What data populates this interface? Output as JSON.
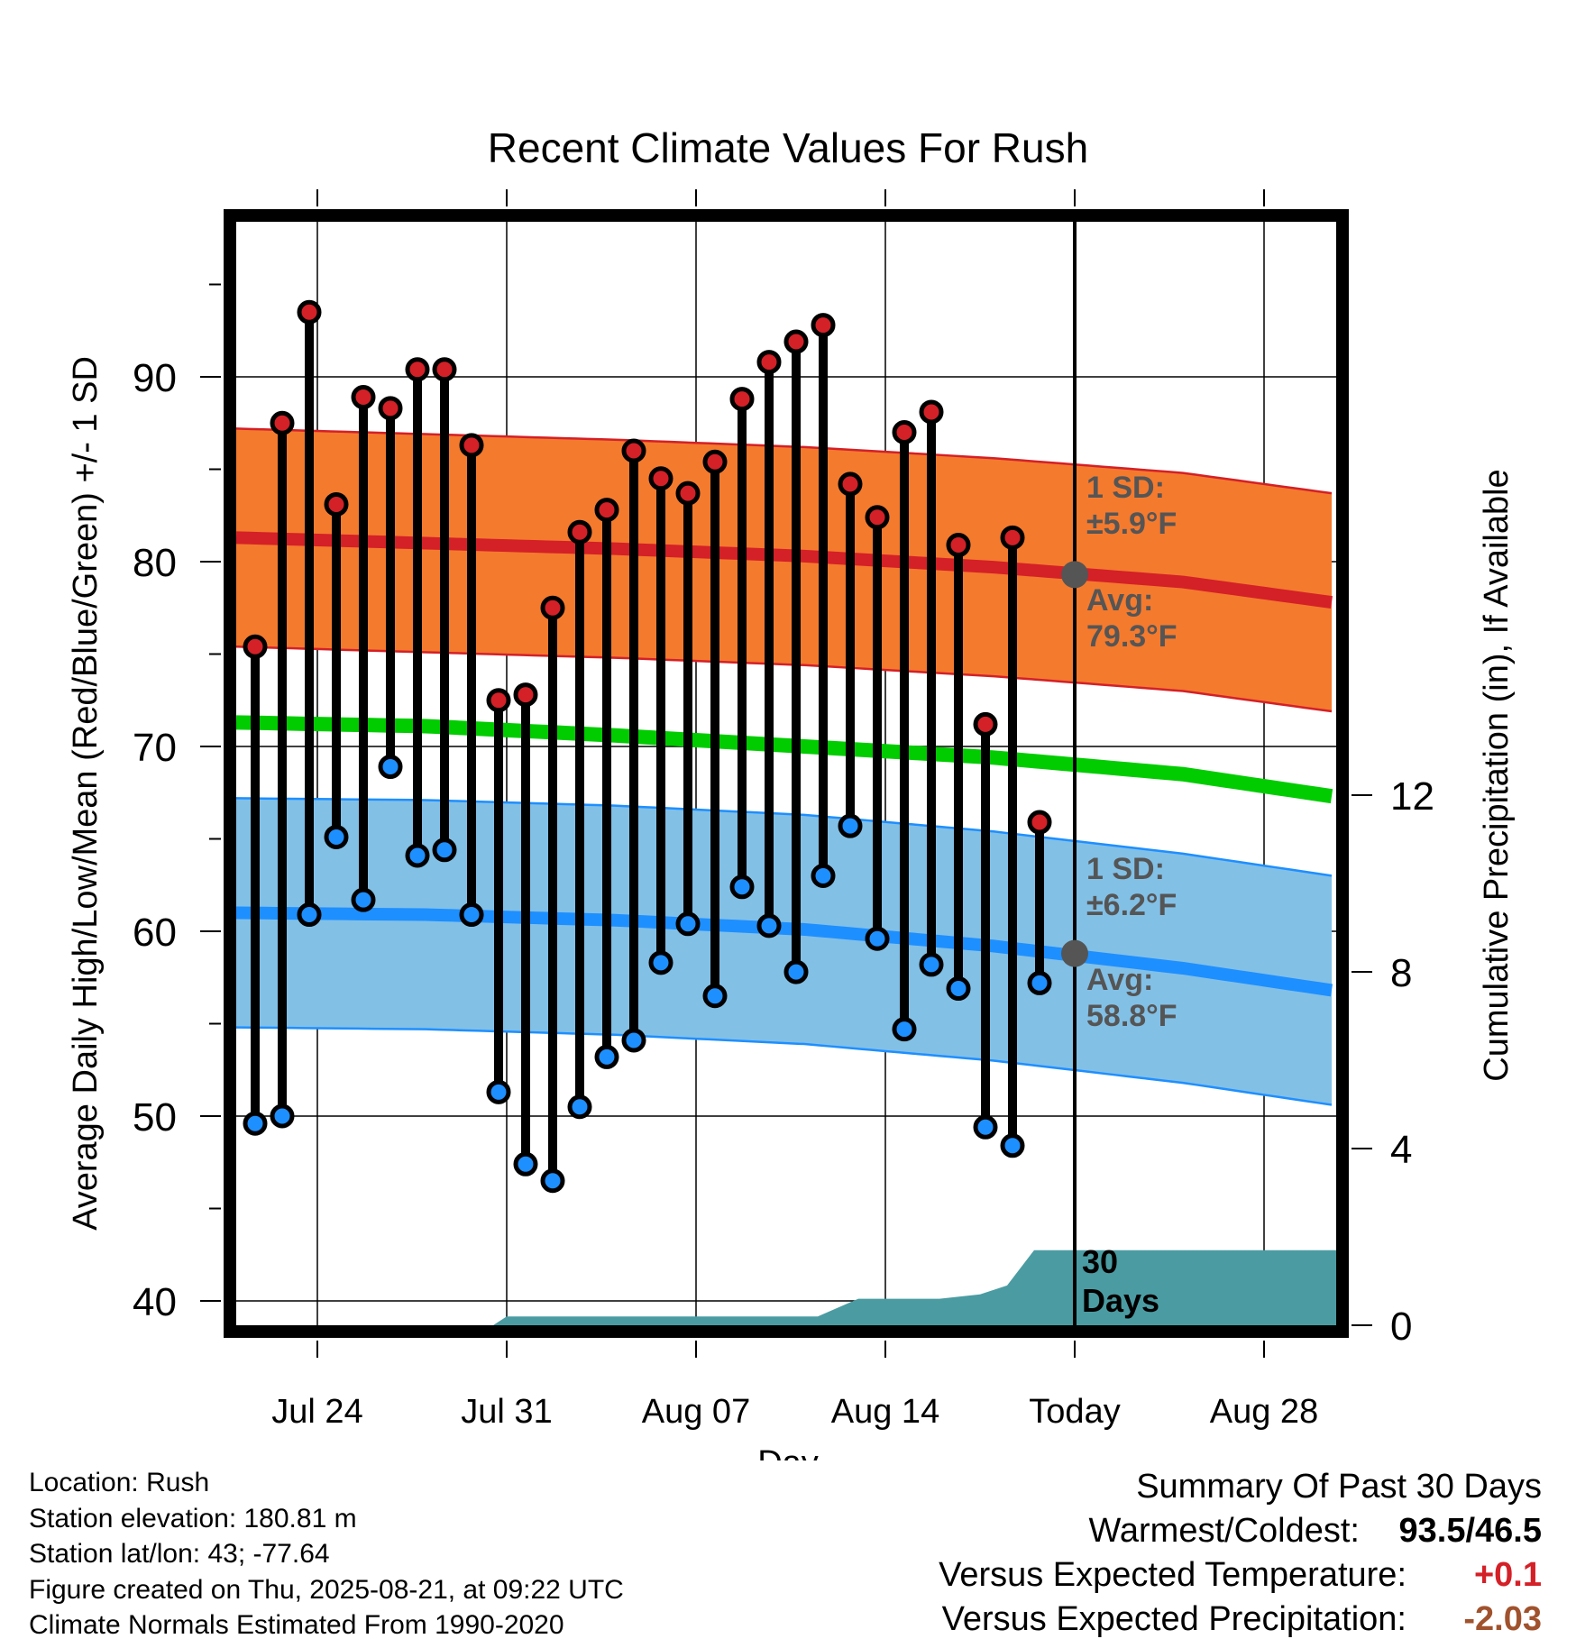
{
  "chart_data": {
    "type": "line",
    "title": "Recent Climate Values For Rush",
    "xlabel": "Day",
    "ylabel": "Average Daily High/Low/Mean (Red/Blue/Green) +/- 1 SD",
    "y2label": "Cumulative Precipitation (in), If Available",
    "ylim": [
      39,
      98
    ],
    "y2lim": [
      0,
      24
    ],
    "yticks": [
      40,
      50,
      60,
      70,
      80,
      90
    ],
    "y2ticks": [
      0,
      4,
      8,
      12
    ],
    "x_start": "Jul 21",
    "x_end": "Sep 01",
    "xticks": [
      {
        "label": "Jul 24",
        "day": 3
      },
      {
        "label": "Jul 31",
        "day": 10
      },
      {
        "label": "Aug 07",
        "day": 17
      },
      {
        "label": "Aug 14",
        "day": 24
      },
      {
        "label": "Today",
        "day": 31
      },
      {
        "label": "Aug 28",
        "day": 38
      }
    ],
    "today_day": 31,
    "observations": {
      "start_day": 0.7,
      "highs": [
        75.4,
        87.5,
        93.5,
        83.1,
        88.9,
        88.3,
        90.4,
        90.4,
        86.3,
        72.5,
        72.8,
        77.5,
        81.6,
        82.8,
        86.0,
        84.5,
        83.7,
        85.4,
        88.8,
        90.8,
        91.9,
        92.8,
        84.2,
        82.4,
        87.0,
        88.1,
        80.9,
        71.2,
        81.3,
        65.9
      ],
      "lows": [
        49.6,
        50.0,
        60.9,
        65.1,
        61.7,
        68.9,
        64.1,
        64.4,
        60.9,
        51.3,
        47.4,
        46.5,
        50.5,
        53.2,
        54.1,
        58.3,
        60.4,
        56.5,
        62.4,
        60.3,
        57.8,
        63.0,
        65.7,
        59.6,
        54.7,
        58.2,
        56.9,
        49.4,
        48.4,
        57.2
      ]
    },
    "normals": {
      "days": [
        0,
        7,
        14,
        21,
        28,
        35,
        41
      ],
      "high_avg": [
        81.3,
        81.0,
        80.7,
        80.3,
        79.7,
        78.9,
        77.7
      ],
      "high_sd": 5.9,
      "low_avg": [
        61.0,
        60.9,
        60.6,
        60.1,
        59.2,
        58.0,
        56.7
      ],
      "low_sd": 6.2,
      "mean_avg": [
        71.3,
        71.1,
        70.6,
        70.0,
        69.4,
        68.5,
        67.2
      ]
    },
    "today_high_avg": 79.3,
    "today_low_avg": 58.8,
    "precip": {
      "days": [
        0,
        9.5,
        10,
        21.5,
        23,
        26,
        27.5,
        28.5,
        29.5,
        41
      ],
      "values": [
        0,
        0,
        0.2,
        0.2,
        0.6,
        0.6,
        0.7,
        0.9,
        1.7,
        1.7
      ]
    },
    "colors": {
      "high_band": "#f47a2e",
      "high_line": "#d42027",
      "low_band": "#82c0e6",
      "low_line": "#1e8fff",
      "mean_line": "#00cc00",
      "precip": "#4a9ca2",
      "high_dot": "#d42027",
      "low_dot": "#1e8fff",
      "annotation": "#555555"
    },
    "annotations": {
      "high_sd_label": "1 SD:",
      "high_sd_value": "±5.9°F",
      "high_avg_label": "Avg:",
      "high_avg_value": "79.3°F",
      "low_sd_label": "1 SD:",
      "low_sd_value": "±6.2°F",
      "low_avg_label": "Avg:",
      "low_avg_value": "58.8°F",
      "precip_label_1": "30",
      "precip_label_2": "Days"
    }
  },
  "footer": {
    "location": "Location: Rush",
    "elevation": "Station elevation: 180.81 m",
    "latlon": "Station lat/lon: 43; -77.64",
    "created": "Figure created on Thu, 2025-08-21, at 09:22 UTC",
    "normals": "Climate Normals Estimated From 1990-2020"
  },
  "summary": {
    "heading": "Summary Of Past 30 Days",
    "warm_cold_label": "Warmest/Coldest:",
    "warm_cold_value": "93.5/46.5",
    "temp_label": "Versus Expected Temperature:",
    "temp_value": "+0.1",
    "temp_color": "#d42027",
    "precip_label": "Versus Expected Precipitation:",
    "precip_value": "-2.03",
    "precip_color": "#a0522d"
  }
}
